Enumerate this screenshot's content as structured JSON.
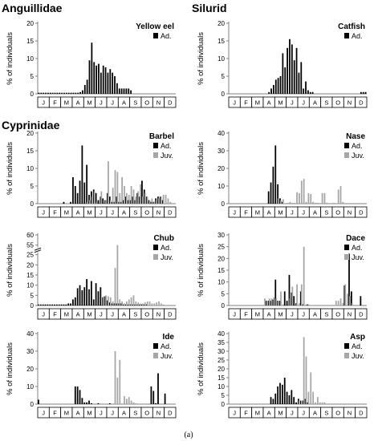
{
  "families": [
    {
      "name": "Anguillidae",
      "x": 2,
      "y": 15
    },
    {
      "name": "Silurid",
      "x": 239,
      "y": 15
    },
    {
      "name": "Cyprinidae",
      "x": 2,
      "y": 161
    }
  ],
  "months": [
    "J",
    "F",
    "M",
    "A",
    "M",
    "J",
    "J",
    "A",
    "S",
    "O",
    "N",
    "D"
  ],
  "caption": "(a)",
  "colors": {
    "adult": "#000000",
    "juvenile": "#a6a6a6",
    "axis": "#808080",
    "monthbox": "#000000"
  },
  "chart_data": [
    {
      "type": "bar",
      "title": "Yellow eel",
      "ylabel": "% of individuals",
      "ylim": [
        0,
        20
      ],
      "yticks": [
        0,
        5,
        10,
        15,
        20
      ],
      "legend": [
        "Ad."
      ],
      "series": [
        {
          "name": "Ad.",
          "role": "adult",
          "values": [
            0.3,
            0.3,
            0.3,
            0.3,
            0.3,
            0.3,
            0.3,
            0.3,
            0.3,
            0.3,
            0.3,
            0.3,
            0.3,
            0.3,
            0.3,
            0.3,
            0.3,
            0.3,
            0.5,
            1,
            2.5,
            4,
            9.5,
            14.5,
            9,
            8,
            8.5,
            6,
            8,
            7.5,
            6,
            7,
            6,
            5,
            3,
            1.5,
            1.5,
            1.5,
            1.5,
            1.5,
            1,
            0,
            0,
            0,
            0,
            0,
            0,
            0,
            0,
            0,
            0,
            0,
            0,
            0,
            0,
            0,
            0,
            0,
            0,
            0
          ]
        }
      ]
    },
    {
      "type": "bar",
      "title": "Catfish",
      "ylabel": "% of individuals",
      "ylim": [
        0,
        20
      ],
      "yticks": [
        0,
        5,
        10,
        15,
        20
      ],
      "legend": [
        "Ad."
      ],
      "series": [
        {
          "name": "Ad.",
          "role": "adult",
          "values": [
            0,
            0,
            0,
            0,
            0,
            0,
            0,
            0,
            0,
            0,
            0,
            0,
            0,
            0,
            0,
            0,
            0,
            0.5,
            1.5,
            2.5,
            4,
            4.5,
            5,
            11.5,
            7.5,
            13,
            15.5,
            14,
            9.5,
            13,
            6,
            9,
            1.5,
            3.5,
            1,
            0.5,
            0.5,
            0,
            0,
            0,
            0,
            0,
            0,
            0,
            0,
            0,
            0,
            0,
            0,
            0,
            0,
            0,
            0,
            0,
            0,
            0,
            0,
            0.5,
            0.5,
            0.5
          ]
        }
      ]
    },
    {
      "type": "bar",
      "title": "Barbel",
      "ylabel": "% of individuals",
      "ylim": [
        0,
        20
      ],
      "yticks": [
        0,
        5,
        10,
        15,
        20
      ],
      "legend": [
        "Ad.",
        "Juv."
      ],
      "series": [
        {
          "name": "Ad.",
          "role": "adult",
          "values": [
            0,
            0,
            0,
            0,
            0,
            0,
            0,
            0,
            0,
            0,
            0,
            0.5,
            0,
            0,
            0.5,
            7.5,
            5,
            3,
            6.5,
            16.5,
            6,
            11,
            2.5,
            3.5,
            4,
            3,
            1,
            2,
            1.5,
            1,
            3,
            2,
            0.5,
            0.5,
            2,
            0.5,
            0.5,
            1,
            2,
            1,
            1,
            2,
            1,
            3,
            2,
            6.5,
            4,
            2,
            1,
            0.5,
            0.5,
            1.5,
            2,
            2,
            1,
            0,
            0,
            0,
            0,
            0
          ]
        },
        {
          "name": "Juv.",
          "role": "juvenile",
          "values": [
            0,
            0,
            0,
            0,
            0,
            0,
            0,
            0,
            0,
            0,
            0,
            0,
            0,
            0,
            0,
            0,
            0,
            0,
            0,
            0,
            0,
            0.5,
            1,
            2,
            3.5,
            0.5,
            0,
            3.5,
            0,
            1,
            12,
            1,
            4.5,
            9.5,
            9,
            3,
            7.5,
            5,
            3,
            2.5,
            5,
            4,
            2,
            3.5,
            5.5,
            2,
            3,
            2,
            1,
            1.5,
            0.5,
            1,
            1.5,
            2,
            2.5,
            2.5,
            1.5,
            0.5,
            0,
            0
          ]
        }
      ]
    },
    {
      "type": "bar",
      "title": "Nase",
      "ylabel": "% of individuals",
      "ylim": [
        0,
        40
      ],
      "yticks": [
        0,
        10,
        20,
        30,
        40
      ],
      "legend": [
        "Ad.",
        "Juv."
      ],
      "series": [
        {
          "name": "Ad.",
          "role": "adult",
          "values": [
            0,
            0,
            0,
            0,
            0,
            0,
            0,
            0,
            0,
            0,
            0,
            0,
            0,
            0,
            0,
            0,
            0,
            7,
            12,
            21,
            33,
            11,
            3,
            1,
            0,
            0,
            0,
            0,
            0,
            0,
            0,
            0,
            0,
            0,
            0,
            0,
            0,
            0,
            0,
            0,
            0,
            0,
            0,
            0,
            0,
            0,
            0,
            0,
            0,
            0,
            0,
            0,
            0,
            0,
            0,
            0,
            0,
            0,
            0,
            0
          ]
        },
        {
          "name": "Juv.",
          "role": "juvenile",
          "values": [
            0,
            0,
            0,
            0,
            0,
            0,
            0,
            0,
            0,
            0,
            0,
            0,
            0,
            0,
            0,
            0,
            0,
            0,
            0,
            0,
            0,
            3,
            2,
            2.5,
            0,
            0.5,
            1,
            0.5,
            0.5,
            6.5,
            6,
            13,
            14,
            1,
            6,
            5.5,
            1,
            0.5,
            0.5,
            0,
            6,
            6,
            0.5,
            0,
            0,
            0.5,
            0,
            8,
            10,
            1,
            0,
            0,
            0,
            0,
            0,
            0,
            0,
            0,
            0,
            0
          ]
        }
      ]
    },
    {
      "type": "bar",
      "title": "Chub",
      "ylabel": "% of individuals",
      "ylim": [
        0,
        60
      ],
      "yticks": [
        0,
        5,
        10,
        15,
        20,
        25,
        55,
        60
      ],
      "broken_axis": [
        25,
        55
      ],
      "legend": [
        "Ad.",
        "Juv."
      ],
      "series": [
        {
          "name": "Ad.",
          "role": "adult",
          "values": [
            0.5,
            0.5,
            0.5,
            0.5,
            0.5,
            0.5,
            0.5,
            0.5,
            0.5,
            0.5,
            0.5,
            0.5,
            0.5,
            1,
            1,
            3,
            4,
            8.5,
            10,
            7.5,
            9,
            13,
            8,
            12,
            3,
            11,
            7,
            9,
            4,
            4.5,
            2.5,
            1.5,
            1,
            1,
            1,
            1,
            1,
            0.5,
            0.5,
            0.5,
            0.5,
            0.5,
            0.5,
            0.5,
            0.5,
            0.5,
            0.5,
            0.5,
            0,
            0,
            0,
            0,
            0,
            0,
            0,
            0,
            0,
            0,
            0,
            0
          ]
        },
        {
          "name": "Juv.",
          "role": "juvenile",
          "values": [
            0,
            0,
            0,
            0,
            0,
            0,
            0,
            0,
            0,
            0,
            0,
            0,
            0,
            0,
            0,
            0,
            0,
            0,
            0,
            0,
            0,
            0,
            0,
            0,
            0,
            0,
            0,
            0,
            4.5,
            5,
            4.5,
            4,
            2,
            18.5,
            55,
            3,
            2,
            1,
            2,
            3,
            4,
            5,
            2,
            1.5,
            1,
            1,
            1.5,
            2,
            2,
            1,
            1,
            1.5,
            2,
            1,
            0.5,
            0,
            0,
            0,
            0,
            0
          ]
        }
      ]
    },
    {
      "type": "bar",
      "title": "Dace",
      "ylabel": "% of individuals",
      "ylim": [
        0,
        30
      ],
      "yticks": [
        0,
        5,
        10,
        15,
        20,
        25,
        30
      ],
      "legend": [
        "Ad.",
        "Juv."
      ],
      "series": [
        {
          "name": "Ad.",
          "role": "adult",
          "values": [
            0,
            0,
            0,
            0,
            0,
            0,
            0,
            0,
            0,
            0,
            0,
            0,
            0,
            0,
            0,
            0,
            2,
            2,
            2,
            2.5,
            11,
            2,
            2,
            0,
            6,
            2,
            13,
            5.5,
            4,
            1,
            0,
            6,
            0.5,
            0,
            0.5,
            0,
            0,
            0,
            0,
            0,
            0,
            0,
            0,
            0,
            0,
            0,
            0,
            0,
            0,
            0,
            8.5,
            0,
            22,
            6,
            0,
            0,
            0,
            4,
            0,
            0
          ]
        },
        {
          "name": "Juv.",
          "role": "juvenile",
          "values": [
            0,
            0,
            0,
            0,
            0,
            0,
            0,
            0,
            0,
            0,
            0,
            0,
            0,
            0,
            0,
            3,
            2,
            3,
            3,
            3.5,
            3,
            2,
            6,
            0.5,
            0,
            0,
            3,
            8,
            0,
            9,
            1,
            9,
            25,
            0.5,
            0.5,
            0,
            0,
            0,
            0,
            0,
            0,
            0,
            0,
            0,
            0,
            0,
            2,
            2,
            3,
            1,
            9,
            5,
            4,
            1,
            0,
            0,
            0,
            0,
            0,
            0
          ]
        }
      ]
    },
    {
      "type": "bar",
      "title": "Ide",
      "ylabel": "% of individuals",
      "ylim": [
        0,
        40
      ],
      "yticks": [
        0,
        10,
        20,
        30,
        40
      ],
      "legend": [
        "Ad.",
        "Juv."
      ],
      "series": [
        {
          "name": "Ad.",
          "role": "adult",
          "values": [
            2.5,
            0,
            0,
            0,
            0,
            0,
            0,
            0,
            0,
            0,
            0,
            0,
            0,
            0,
            0,
            0,
            10,
            10,
            8,
            3.5,
            1,
            1,
            2,
            0.5,
            0,
            0,
            0.5,
            0,
            0,
            0,
            0,
            0.5,
            0,
            0,
            0,
            0,
            0,
            0,
            0,
            0,
            0,
            0,
            0,
            0,
            0,
            0,
            0,
            0,
            0,
            10,
            7.5,
            0.5,
            17.5,
            0,
            0,
            6,
            0,
            0,
            0,
            0
          ]
        },
        {
          "name": "Juv.",
          "role": "juvenile",
          "values": [
            0,
            0,
            0,
            0,
            0,
            0,
            0,
            0,
            0,
            0,
            0,
            0,
            0,
            0,
            0,
            0,
            0,
            0,
            0,
            0,
            0,
            0,
            0,
            0,
            0,
            0,
            0,
            0,
            0,
            0,
            0,
            0,
            0,
            30,
            15,
            25,
            0,
            4.5,
            3,
            4,
            2,
            1,
            0.5,
            0,
            0,
            0,
            0,
            0,
            0,
            0,
            0,
            0,
            0,
            0,
            0,
            0,
            0,
            0,
            0,
            0
          ]
        }
      ]
    },
    {
      "type": "bar",
      "title": "Asp",
      "ylabel": "% of individuals",
      "ylim": [
        0,
        40
      ],
      "yticks": [
        0,
        5,
        10,
        15,
        20,
        25,
        30,
        35,
        40
      ],
      "legend": [
        "Ad.",
        "Juv."
      ],
      "series": [
        {
          "name": "Ad.",
          "role": "adult",
          "values": [
            0,
            0,
            0,
            0,
            0,
            0,
            0,
            0,
            0,
            0,
            0,
            0,
            0,
            0,
            0,
            0,
            0,
            0,
            4,
            3,
            6,
            10,
            12,
            11,
            15,
            7,
            5,
            8,
            4,
            1,
            3,
            2,
            2,
            3,
            1,
            0,
            0,
            0,
            0,
            0,
            0,
            0,
            0,
            0,
            0,
            0,
            0,
            0,
            0,
            0,
            0,
            0,
            0,
            0,
            0,
            0,
            0,
            0,
            0,
            0
          ]
        },
        {
          "name": "Juv.",
          "role": "juvenile",
          "values": [
            0,
            0,
            0,
            0,
            0,
            0,
            0,
            0,
            0,
            0,
            0,
            0,
            0,
            0,
            0,
            0,
            0,
            0,
            0,
            0,
            0,
            0,
            0,
            0,
            0,
            0,
            0,
            0,
            0,
            0,
            2,
            2,
            38,
            27,
            7,
            18,
            7,
            1,
            4,
            1,
            1,
            1,
            0,
            0,
            0,
            0,
            0,
            0,
            0,
            0,
            0,
            0,
            0,
            0,
            0,
            0,
            0,
            0,
            0,
            0
          ]
        }
      ]
    }
  ]
}
